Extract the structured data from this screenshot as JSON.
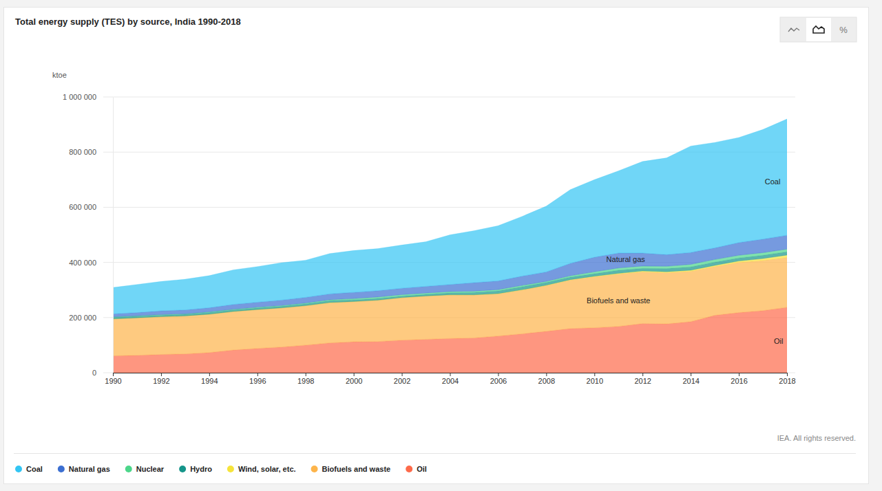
{
  "chart_data": {
    "type": "area",
    "title": "Total energy supply (TES) by source, India 1990-2018",
    "y_label": "ktoe",
    "source": "IEA. All rights reserved.",
    "stacked": true,
    "grid": true,
    "legend": "bottom",
    "x": [
      1990,
      1991,
      1992,
      1993,
      1994,
      1995,
      1996,
      1997,
      1998,
      1999,
      2000,
      2001,
      2002,
      2003,
      2004,
      2005,
      2006,
      2007,
      2008,
      2009,
      2010,
      2011,
      2012,
      2013,
      2014,
      2015,
      2016,
      2017,
      2018
    ],
    "xlim": [
      1990,
      2018
    ],
    "xticks": [
      1990,
      1992,
      1994,
      1996,
      1998,
      2000,
      2002,
      2004,
      2006,
      2008,
      2010,
      2012,
      2014,
      2016,
      2018
    ],
    "ylim": [
      0,
      1000000
    ],
    "yticks": [
      {
        "value": 0,
        "label": "0"
      },
      {
        "value": 200000,
        "label": "200 000"
      },
      {
        "value": 400000,
        "label": "400 000"
      },
      {
        "value": 600000,
        "label": "600 000"
      },
      {
        "value": 800000,
        "label": "800 000"
      },
      {
        "value": 1000000,
        "label": "1 000 000"
      }
    ],
    "series": [
      {
        "name": "Coal",
        "color": "#33c5f3",
        "values": [
          95600,
          102100,
          106800,
          111400,
          116500,
          125400,
          129300,
          135700,
          134700,
          146200,
          151600,
          152800,
          156600,
          161900,
          180100,
          188500,
          200200,
          216700,
          238500,
          267400,
          281200,
          298100,
          332200,
          350900,
          386000,
          382400,
          381000,
          397600,
          421600
        ]
      },
      {
        "name": "Natural gas",
        "color": "#3c6fd1",
        "values": [
          10600,
          11300,
          13400,
          14100,
          15000,
          17400,
          18400,
          19700,
          20500,
          21300,
          22500,
          22700,
          23300,
          24400,
          25800,
          30800,
          31400,
          33700,
          34500,
          45000,
          53000,
          54000,
          47000,
          42000,
          43000,
          42000,
          46000,
          49000,
          50000
        ]
      },
      {
        "name": "Nuclear",
        "color": "#4cd68a",
        "values": [
          1600,
          1500,
          1800,
          1400,
          1400,
          2000,
          2300,
          2600,
          2700,
          3400,
          4400,
          5000,
          5100,
          4700,
          4400,
          4500,
          4800,
          4800,
          3900,
          4800,
          6800,
          8400,
          8600,
          8600,
          9400,
          9800,
          9900,
          9700,
          10000
        ]
      },
      {
        "name": "Hydro",
        "color": "#15958a",
        "values": [
          6200,
          6100,
          6000,
          6100,
          7100,
          6200,
          5900,
          5900,
          7000,
          7000,
          6400,
          6400,
          5800,
          5700,
          7300,
          8700,
          9800,
          10800,
          9900,
          9300,
          9200,
          11200,
          9400,
          11300,
          12000,
          11800,
          11100,
          11900,
          11900
        ]
      },
      {
        "name": "Wind, solar, etc.",
        "color": "#f6e43b",
        "values": [
          3,
          2,
          3,
          10,
          20,
          50,
          70,
          80,
          100,
          120,
          140,
          150,
          200,
          300,
          400,
          500,
          800,
          1000,
          1200,
          1500,
          1800,
          2300,
          2800,
          3200,
          3600,
          4000,
          5000,
          6800,
          8500
        ]
      },
      {
        "name": "Biofuels and waste",
        "color": "#fdb44a",
        "values": [
          134000,
          136000,
          137000,
          138000,
          139000,
          140000,
          141000,
          142000,
          143000,
          146000,
          146000,
          150000,
          154000,
          157000,
          158000,
          156000,
          153000,
          159000,
          166000,
          176000,
          185000,
          190000,
          188000,
          186000,
          183000,
          177000,
          182000,
          182000,
          181000
        ]
      },
      {
        "name": "Oil",
        "color": "#fd6a4a",
        "values": [
          61000,
          63000,
          66000,
          68000,
          73000,
          82000,
          88000,
          93000,
          100000,
          108000,
          112000,
          113000,
          118000,
          121000,
          124000,
          126000,
          133000,
          141000,
          150000,
          160000,
          163000,
          168000,
          178000,
          177000,
          185000,
          208000,
          218000,
          225000,
          237000
        ]
      }
    ],
    "annotations": [
      {
        "text": "Coal",
        "x": 2017.4,
        "y": 693000
      },
      {
        "text": "Natural gas",
        "x": 2011.3,
        "y": 411000
      },
      {
        "text": "Biofuels and waste",
        "x": 2011.0,
        "y": 262000
      },
      {
        "text": "Oil",
        "x": 2017.65,
        "y": 115000
      }
    ]
  },
  "toolbar": {
    "percent": "%"
  }
}
